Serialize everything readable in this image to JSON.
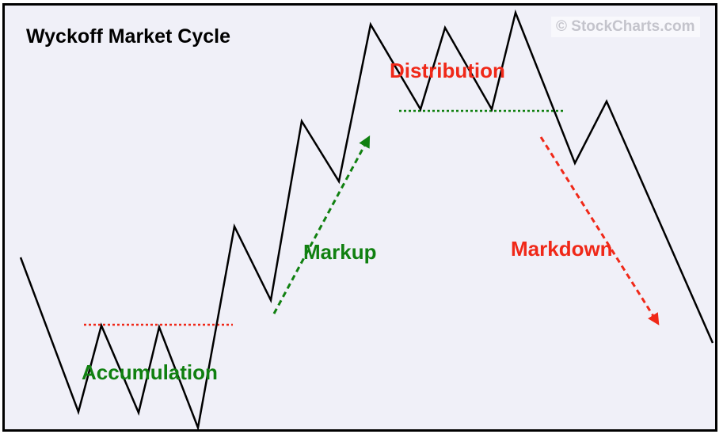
{
  "title": "Wyckoff Market Cycle",
  "watermark": "© StockCharts.com",
  "phases": {
    "accumulation": "Accumulation",
    "markup": "Markup",
    "distribution": "Distribution",
    "markdown": "Markdown"
  },
  "colors": {
    "background": "#f0f0f8",
    "price_line": "#000000",
    "green": "#108010",
    "red": "#f02818",
    "watermark": "#c4c4cc"
  }
}
